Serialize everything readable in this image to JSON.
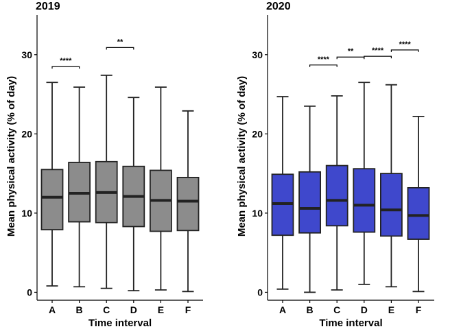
{
  "chart_data": [
    {
      "type": "boxplot",
      "title": "2019",
      "xlabel": "Time interval",
      "ylabel": "Mean physical activity (% of day)",
      "ylim": [
        -1,
        35
      ],
      "yticks": [
        0,
        10,
        20,
        30
      ],
      "categories": [
        "A",
        "B",
        "C",
        "D",
        "E",
        "F"
      ],
      "fill": "#8c8c8c",
      "boxes": [
        {
          "whislo": 0.8,
          "q1": 7.9,
          "med": 12.0,
          "q3": 15.5,
          "whishi": 26.5
        },
        {
          "whislo": 0.7,
          "q1": 8.9,
          "med": 12.5,
          "q3": 16.4,
          "whishi": 25.9
        },
        {
          "whislo": 0.5,
          "q1": 8.8,
          "med": 12.6,
          "q3": 16.5,
          "whishi": 27.4
        },
        {
          "whislo": 0.2,
          "q1": 8.3,
          "med": 12.1,
          "q3": 15.9,
          "whishi": 24.6
        },
        {
          "whislo": 0.3,
          "q1": 7.7,
          "med": 11.6,
          "q3": 15.4,
          "whishi": 25.9
        },
        {
          "whislo": 0.1,
          "q1": 7.8,
          "med": 11.5,
          "q3": 14.5,
          "whishi": 22.9
        }
      ],
      "annotations": [
        {
          "from": "A",
          "to": "B",
          "y": 28.5,
          "label": "****"
        },
        {
          "from": "C",
          "to": "D",
          "y": 30.9,
          "label": "**"
        }
      ]
    },
    {
      "type": "boxplot",
      "title": "2020",
      "xlabel": "Time interval",
      "ylabel": "Mean physical activity (% of day)",
      "ylim": [
        -1,
        35
      ],
      "yticks": [
        0,
        10,
        20,
        30
      ],
      "categories": [
        "A",
        "B",
        "C",
        "D",
        "E",
        "F"
      ],
      "fill": "#3f48cc",
      "boxes": [
        {
          "whislo": 0.4,
          "q1": 7.2,
          "med": 11.2,
          "q3": 14.9,
          "whishi": 24.7
        },
        {
          "whislo": 0.0,
          "q1": 7.5,
          "med": 10.6,
          "q3": 15.2,
          "whishi": 23.5
        },
        {
          "whislo": 0.3,
          "q1": 8.4,
          "med": 11.6,
          "q3": 16.0,
          "whishi": 24.8
        },
        {
          "whislo": 1.0,
          "q1": 7.6,
          "med": 11.0,
          "q3": 15.6,
          "whishi": 26.5
        },
        {
          "whislo": 0.7,
          "q1": 7.1,
          "med": 10.4,
          "q3": 15.0,
          "whishi": 26.2
        },
        {
          "whislo": 0.1,
          "q1": 6.7,
          "med": 9.7,
          "q3": 13.2,
          "whishi": 22.2
        }
      ],
      "annotations": [
        {
          "from": "B",
          "to": "C",
          "y": 28.7,
          "label": "****"
        },
        {
          "from": "C",
          "to": "D",
          "y": 29.7,
          "label": "**"
        },
        {
          "from": "D",
          "to": "E",
          "y": 29.8,
          "label": "****"
        },
        {
          "from": "E",
          "to": "F",
          "y": 30.6,
          "label": "****"
        }
      ]
    }
  ]
}
